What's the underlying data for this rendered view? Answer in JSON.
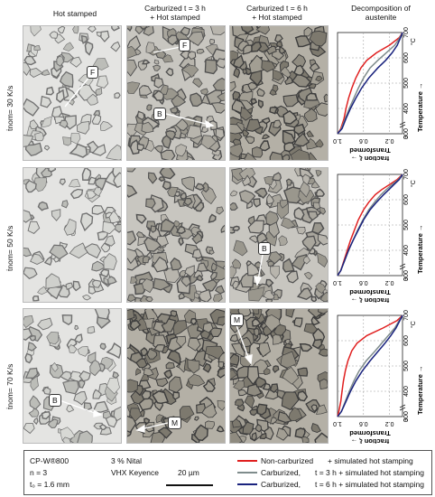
{
  "headers": {
    "col1": "Hot stamped",
    "col2": "Carburized t = 3 h\n+ Hot stamped",
    "col3": "Carburized t = 6 h\n+ Hot stamped",
    "col4": "Decomposition of\naustenite"
  },
  "rows": [
    {
      "label": "ṫnom= 30 K/s"
    },
    {
      "label": "ṫnom= 50 K/s"
    },
    {
      "label": "ṫnom= 70 K/s"
    }
  ],
  "annotations": {
    "r1c1": "F",
    "r1c2_f": "F",
    "r1c2_b": "B",
    "r2c3": "B",
    "r3c1": "B",
    "r3c2": "M",
    "r3c3": "M"
  },
  "chart_axes": {
    "x_label": "Temperature →",
    "x_unit": "°C",
    "y_label": "Transformed\nfraction ξ →",
    "x_ticks": [
      "0",
      "300",
      "400",
      "500",
      "600",
      "700"
    ],
    "y_ticks": [
      "1.0",
      "0.6",
      "0.2"
    ]
  },
  "legend": {
    "material": "CP-W®800",
    "n": "n = 3",
    "t0": "t₀ = 1.6 mm",
    "etch": "3 % Nital",
    "microscope": "VHX Keyence",
    "scale": "20 µm",
    "entries": [
      {
        "name": "Non-carburized",
        "desc": "+ simulated hot stamping",
        "color": "#e02020"
      },
      {
        "name": "Carburized,",
        "desc": "t = 3 h + simulated hot stamping",
        "color": "#7f8c8c"
      },
      {
        "name": "Carburized,",
        "desc": "t = 6 h + simulated hot stamping",
        "color": "#1a237e"
      }
    ]
  },
  "chart_data": [
    {
      "type": "line",
      "xlabel": "Temperature →",
      "ylabel": "Transformed fraction ξ →",
      "xlim": [
        300,
        700
      ],
      "ylim": [
        0,
        1.0
      ],
      "series": [
        {
          "name": "Non-carburized",
          "color": "#e02020",
          "x": [
            700,
            680,
            650,
            620,
            590,
            560,
            520,
            480,
            440,
            400,
            360,
            320,
            300
          ],
          "y": [
            0.0,
            0.05,
            0.2,
            0.4,
            0.55,
            0.64,
            0.72,
            0.78,
            0.83,
            0.87,
            0.9,
            0.95,
            1.0
          ]
        },
        {
          "name": "Carburized, t = 3 h",
          "color": "#7f8c8c",
          "x": [
            700,
            680,
            650,
            620,
            590,
            560,
            520,
            480,
            440,
            400,
            360,
            320,
            300
          ],
          "y": [
            0.0,
            0.04,
            0.12,
            0.25,
            0.38,
            0.5,
            0.6,
            0.68,
            0.75,
            0.82,
            0.88,
            0.94,
            1.0
          ]
        },
        {
          "name": "Carburized, t = 6 h",
          "color": "#1a237e",
          "x": [
            700,
            680,
            650,
            620,
            590,
            560,
            520,
            480,
            440,
            400,
            360,
            320,
            300
          ],
          "y": [
            0.0,
            0.03,
            0.08,
            0.16,
            0.26,
            0.38,
            0.52,
            0.63,
            0.72,
            0.8,
            0.87,
            0.93,
            1.0
          ]
        }
      ]
    },
    {
      "type": "line",
      "xlabel": "Temperature →",
      "ylabel": "Transformed fraction ξ →",
      "xlim": [
        300,
        700
      ],
      "ylim": [
        0,
        1.0
      ],
      "series": [
        {
          "name": "Non-carburized",
          "color": "#e02020",
          "x": [
            700,
            680,
            660,
            640,
            620,
            590,
            560,
            520,
            480,
            440,
            400,
            360,
            320,
            300
          ],
          "y": [
            0.0,
            0.08,
            0.2,
            0.32,
            0.42,
            0.52,
            0.6,
            0.68,
            0.74,
            0.8,
            0.85,
            0.9,
            0.95,
            1.0
          ]
        },
        {
          "name": "Carburized, t = 3 h",
          "color": "#7f8c8c",
          "x": [
            700,
            680,
            660,
            640,
            620,
            590,
            560,
            520,
            480,
            440,
            400,
            360,
            320,
            300
          ],
          "y": [
            0.0,
            0.06,
            0.16,
            0.25,
            0.33,
            0.43,
            0.52,
            0.61,
            0.69,
            0.76,
            0.83,
            0.89,
            0.95,
            1.0
          ]
        },
        {
          "name": "Carburized, t = 6 h",
          "color": "#1a237e",
          "x": [
            700,
            680,
            660,
            640,
            620,
            590,
            560,
            520,
            480,
            440,
            400,
            360,
            320,
            300
          ],
          "y": [
            0.0,
            0.05,
            0.13,
            0.21,
            0.29,
            0.4,
            0.5,
            0.6,
            0.68,
            0.76,
            0.83,
            0.89,
            0.95,
            1.0
          ]
        }
      ]
    },
    {
      "type": "line",
      "xlabel": "Temperature →",
      "ylabel": "Transformed fraction ξ →",
      "xlim": [
        300,
        700
      ],
      "ylim": [
        0,
        1.0
      ],
      "series": [
        {
          "name": "Non-carburized",
          "color": "#e02020",
          "x": [
            700,
            680,
            650,
            620,
            590,
            560,
            520,
            480,
            440,
            400,
            360,
            320,
            300
          ],
          "y": [
            0.0,
            0.08,
            0.3,
            0.55,
            0.7,
            0.78,
            0.84,
            0.88,
            0.91,
            0.93,
            0.95,
            0.98,
            1.0
          ]
        },
        {
          "name": "Carburized, t = 3 h",
          "color": "#7f8c8c",
          "x": [
            700,
            680,
            650,
            620,
            590,
            560,
            520,
            480,
            440,
            400,
            360,
            320,
            300
          ],
          "y": [
            0.0,
            0.05,
            0.12,
            0.22,
            0.32,
            0.42,
            0.56,
            0.67,
            0.75,
            0.82,
            0.88,
            0.94,
            1.0
          ]
        },
        {
          "name": "Carburized, t = 6 h",
          "color": "#1a237e",
          "x": [
            700,
            680,
            650,
            620,
            590,
            560,
            520,
            480,
            440,
            400,
            360,
            320,
            300
          ],
          "y": [
            0.0,
            0.04,
            0.1,
            0.18,
            0.27,
            0.37,
            0.5,
            0.62,
            0.72,
            0.8,
            0.87,
            0.94,
            1.0
          ]
        }
      ]
    }
  ]
}
